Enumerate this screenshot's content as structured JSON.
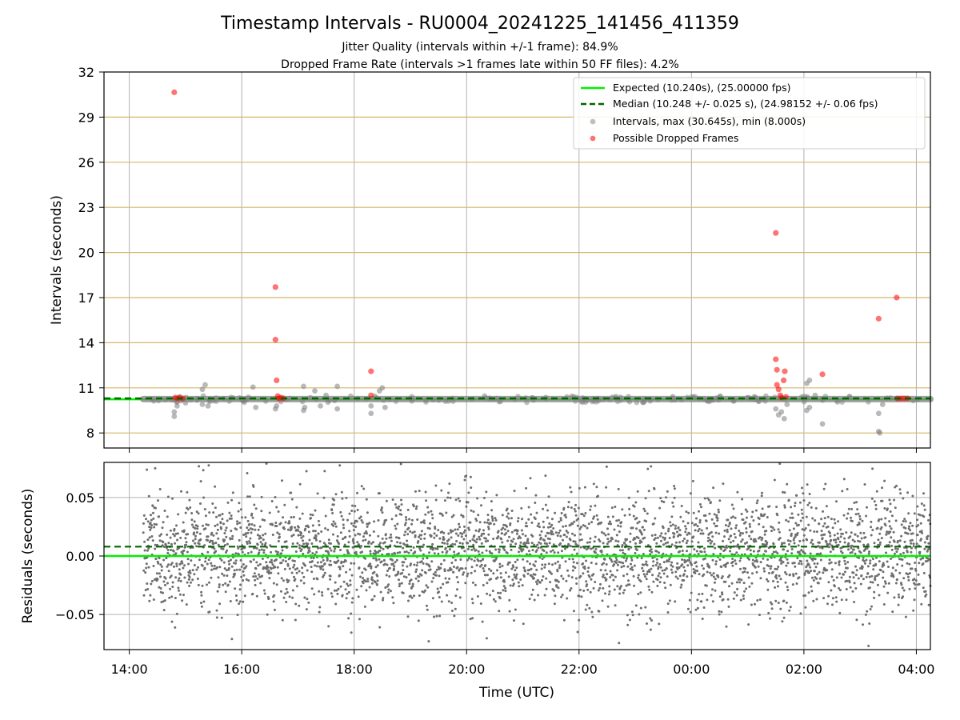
{
  "figure": {
    "title": "Timestamp Intervals - RU0004_20241225_141456_411359",
    "subtitle_line1": "Jitter Quality (intervals within +/-1 frame): 84.9%",
    "subtitle_line2": "Dropped Frame Rate (intervals >1 frames late within 50 FF files): 4.2%"
  },
  "colors": {
    "expected": "#00ee00",
    "median": "#006400",
    "intervals": "#808080",
    "dropped": "#ff0000",
    "hgrid_top": "#d4b86a",
    "grid": "#b0b0b0"
  },
  "chart_data": [
    {
      "type": "scatter",
      "panel": "intervals",
      "ylabel": "Intervals (seconds)",
      "xlabel": "",
      "ylim": [
        7,
        32
      ],
      "yticks": [
        8,
        11,
        14,
        17,
        20,
        23,
        26,
        29,
        32
      ],
      "ytick_labels": [
        "8",
        "11",
        "14",
        "17",
        "20",
        "23",
        "26",
        "29",
        "32"
      ],
      "x_unit": "hours since 14:00 UTC",
      "xlim": [
        -0.45,
        14.25
      ],
      "grid": true,
      "legend": "top-right",
      "legend_entries": [
        "Expected (10.240s), (25.00000 fps)",
        "Median (10.248 +/- 0.025 s), (24.98152 +/- 0.06 fps)",
        "Intervals, max (30.645s), min (8.000s)",
        "Possible Dropped Frames"
      ],
      "expected_value": 10.24,
      "median_value": 10.248,
      "data_start_x": 0.25,
      "data_end_x": 14.25,
      "baseline_y": 10.25,
      "dropped_points": [
        {
          "x": 0.8,
          "y": 30.65
        },
        {
          "x": 0.82,
          "y": 10.35
        },
        {
          "x": 0.86,
          "y": 10.3
        },
        {
          "x": 0.9,
          "y": 10.35
        },
        {
          "x": 0.95,
          "y": 10.3
        },
        {
          "x": 2.6,
          "y": 17.7
        },
        {
          "x": 2.6,
          "y": 14.2
        },
        {
          "x": 2.62,
          "y": 11.5
        },
        {
          "x": 2.64,
          "y": 10.45
        },
        {
          "x": 2.66,
          "y": 10.3
        },
        {
          "x": 2.7,
          "y": 10.35
        },
        {
          "x": 2.74,
          "y": 10.3
        },
        {
          "x": 4.3,
          "y": 12.1
        },
        {
          "x": 4.3,
          "y": 10.5
        },
        {
          "x": 11.5,
          "y": 21.3
        },
        {
          "x": 11.5,
          "y": 12.9
        },
        {
          "x": 11.52,
          "y": 12.2
        },
        {
          "x": 11.52,
          "y": 11.2
        },
        {
          "x": 11.55,
          "y": 10.9
        },
        {
          "x": 11.58,
          "y": 10.5
        },
        {
          "x": 11.6,
          "y": 10.35
        },
        {
          "x": 11.64,
          "y": 11.5
        },
        {
          "x": 11.66,
          "y": 12.1
        },
        {
          "x": 11.68,
          "y": 10.4
        },
        {
          "x": 12.33,
          "y": 11.9
        },
        {
          "x": 13.33,
          "y": 15.6
        },
        {
          "x": 13.65,
          "y": 17.0
        },
        {
          "x": 13.66,
          "y": 10.3
        },
        {
          "x": 13.72,
          "y": 10.3
        },
        {
          "x": 13.78,
          "y": 10.3
        },
        {
          "x": 13.84,
          "y": 10.3
        }
      ],
      "interval_outliers": [
        {
          "x": 0.8,
          "y": 9.1
        },
        {
          "x": 0.8,
          "y": 9.4
        },
        {
          "x": 0.85,
          "y": 9.8
        },
        {
          "x": 1.0,
          "y": 10.0
        },
        {
          "x": 1.3,
          "y": 10.9
        },
        {
          "x": 1.35,
          "y": 11.2
        },
        {
          "x": 1.4,
          "y": 9.8
        },
        {
          "x": 1.3,
          "y": 9.9
        },
        {
          "x": 2.2,
          "y": 11.05
        },
        {
          "x": 2.25,
          "y": 9.7
        },
        {
          "x": 2.6,
          "y": 9.6
        },
        {
          "x": 2.62,
          "y": 9.8
        },
        {
          "x": 3.1,
          "y": 11.1
        },
        {
          "x": 3.1,
          "y": 9.5
        },
        {
          "x": 3.12,
          "y": 9.7
        },
        {
          "x": 3.3,
          "y": 10.8
        },
        {
          "x": 3.4,
          "y": 9.8
        },
        {
          "x": 3.5,
          "y": 10.5
        },
        {
          "x": 3.7,
          "y": 11.1
        },
        {
          "x": 3.7,
          "y": 9.6
        },
        {
          "x": 4.3,
          "y": 9.3
        },
        {
          "x": 4.3,
          "y": 9.8
        },
        {
          "x": 4.45,
          "y": 10.8
        },
        {
          "x": 4.5,
          "y": 11.0
        },
        {
          "x": 4.55,
          "y": 9.7
        },
        {
          "x": 11.5,
          "y": 9.6
        },
        {
          "x": 11.55,
          "y": 9.2
        },
        {
          "x": 11.6,
          "y": 9.4
        },
        {
          "x": 11.65,
          "y": 8.95
        },
        {
          "x": 11.7,
          "y": 9.9
        },
        {
          "x": 12.05,
          "y": 11.3
        },
        {
          "x": 12.1,
          "y": 11.5
        },
        {
          "x": 12.05,
          "y": 9.5
        },
        {
          "x": 12.1,
          "y": 9.7
        },
        {
          "x": 12.2,
          "y": 10.5
        },
        {
          "x": 12.33,
          "y": 8.6
        },
        {
          "x": 13.33,
          "y": 9.3
        },
        {
          "x": 13.33,
          "y": 8.1
        },
        {
          "x": 13.35,
          "y": 8.0
        },
        {
          "x": 13.4,
          "y": 9.9
        }
      ]
    },
    {
      "type": "scatter",
      "panel": "residuals",
      "ylabel": "Residuals (seconds)",
      "xlabel": "Time (UTC)",
      "ylim": [
        -0.08,
        0.08
      ],
      "yticks": [
        -0.05,
        0.0,
        0.05
      ],
      "ytick_labels": [
        "−0.05",
        "0.00",
        "0.05"
      ],
      "xticks": [
        0,
        2,
        4,
        6,
        8,
        10,
        12,
        14
      ],
      "xtick_labels": [
        "14:00",
        "16:00",
        "18:00",
        "20:00",
        "22:00",
        "00:00",
        "02:00",
        "04:00"
      ],
      "xlim": [
        -0.45,
        14.25
      ],
      "grid": true,
      "expected_residual": 0.0,
      "median_residual": 0.008,
      "point_count": 3600,
      "std_estimate": 0.025
    }
  ]
}
